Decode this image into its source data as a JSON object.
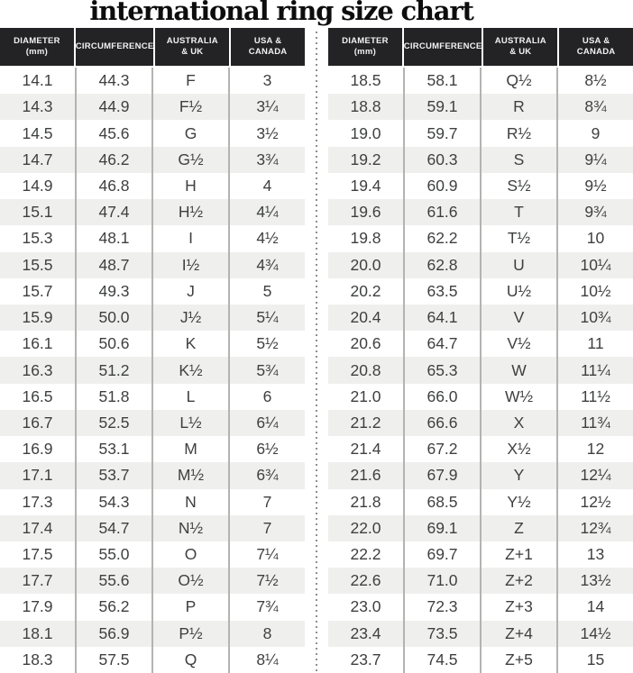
{
  "title": "international ring size chart",
  "colors": {
    "title_color": "#0d0d0d",
    "header_bg": "#232326",
    "header_text": "#f2f2f2",
    "row_stripe": "#eff0ee",
    "row_text": "#3e3f3f",
    "column_divider": "#b3b4b1",
    "dotted_divider": "#8f8f8f",
    "background": "#ffffff"
  },
  "chart_data": {
    "type": "table",
    "title": "international ring size chart",
    "columns": [
      {
        "label": "DIAMETER (mm)",
        "lines": [
          "DIAMETER",
          "(mm)"
        ]
      },
      {
        "label": "CIRCUMFERENCE",
        "lines": [
          "CIRCUMFERENCE"
        ]
      },
      {
        "label": "AUSTRALIA & UK",
        "lines": [
          "AUSTRALIA",
          "& UK"
        ]
      },
      {
        "label": "USA & CANADA",
        "lines": [
          "USA &",
          "CANADA"
        ]
      }
    ],
    "layout": {
      "panels": "two side-by-side tables separated by vertical dotted line",
      "striped_rows": true,
      "stripe_pattern": "odd rows white, even rows light gray"
    },
    "panels": [
      {
        "name": "left",
        "rows": [
          [
            "14.1",
            "44.3",
            "F",
            "3"
          ],
          [
            "14.3",
            "44.9",
            "F½",
            "3¼"
          ],
          [
            "14.5",
            "45.6",
            "G",
            "3½"
          ],
          [
            "14.7",
            "46.2",
            "G½",
            "3¾"
          ],
          [
            "14.9",
            "46.8",
            "H",
            "4"
          ],
          [
            "15.1",
            "47.4",
            "H½",
            "4¼"
          ],
          [
            "15.3",
            "48.1",
            "I",
            "4½"
          ],
          [
            "15.5",
            "48.7",
            "I½",
            "4¾"
          ],
          [
            "15.7",
            "49.3",
            "J",
            "5"
          ],
          [
            "15.9",
            "50.0",
            "J½",
            "5¼"
          ],
          [
            "16.1",
            "50.6",
            "K",
            "5½"
          ],
          [
            "16.3",
            "51.2",
            "K½",
            "5¾"
          ],
          [
            "16.5",
            "51.8",
            "L",
            "6"
          ],
          [
            "16.7",
            "52.5",
            "L½",
            "6¼"
          ],
          [
            "16.9",
            "53.1",
            "M",
            "6½"
          ],
          [
            "17.1",
            "53.7",
            "M½",
            "6¾"
          ],
          [
            "17.3",
            "54.3",
            "N",
            "7"
          ],
          [
            "17.4",
            "54.7",
            "N½",
            "7"
          ],
          [
            "17.5",
            "55.0",
            "O",
            "7¼"
          ],
          [
            "17.7",
            "55.6",
            "O½",
            "7½"
          ],
          [
            "17.9",
            "56.2",
            "P",
            "7¾"
          ],
          [
            "18.1",
            "56.9",
            "P½",
            "8"
          ],
          [
            "18.3",
            "57.5",
            "Q",
            "8¼"
          ]
        ]
      },
      {
        "name": "right",
        "rows": [
          [
            "18.5",
            "58.1",
            "Q½",
            "8½"
          ],
          [
            "18.8",
            "59.1",
            "R",
            "8¾"
          ],
          [
            "19.0",
            "59.7",
            "R½",
            "9"
          ],
          [
            "19.2",
            "60.3",
            "S",
            "9¼"
          ],
          [
            "19.4",
            "60.9",
            "S½",
            "9½"
          ],
          [
            "19.6",
            "61.6",
            "T",
            "9¾"
          ],
          [
            "19.8",
            "62.2",
            "T½",
            "10"
          ],
          [
            "20.0",
            "62.8",
            "U",
            "10¼"
          ],
          [
            "20.2",
            "63.5",
            "U½",
            "10½"
          ],
          [
            "20.4",
            "64.1",
            "V",
            "10¾"
          ],
          [
            "20.6",
            "64.7",
            "V½",
            "11"
          ],
          [
            "20.8",
            "65.3",
            "W",
            "11¼"
          ],
          [
            "21.0",
            "66.0",
            "W½",
            "11½"
          ],
          [
            "21.2",
            "66.6",
            "X",
            "11¾"
          ],
          [
            "21.4",
            "67.2",
            "X½",
            "12"
          ],
          [
            "21.6",
            "67.9",
            "Y",
            "12¼"
          ],
          [
            "21.8",
            "68.5",
            "Y½",
            "12½"
          ],
          [
            "22.0",
            "69.1",
            "Z",
            "12¾"
          ],
          [
            "22.2",
            "69.7",
            "Z+1",
            "13"
          ],
          [
            "22.6",
            "71.0",
            "Z+2",
            "13½"
          ],
          [
            "23.0",
            "72.3",
            "Z+3",
            "14"
          ],
          [
            "23.4",
            "73.5",
            "Z+4",
            "14½"
          ],
          [
            "23.7",
            "74.5",
            "Z+5",
            "15"
          ]
        ]
      }
    ]
  }
}
